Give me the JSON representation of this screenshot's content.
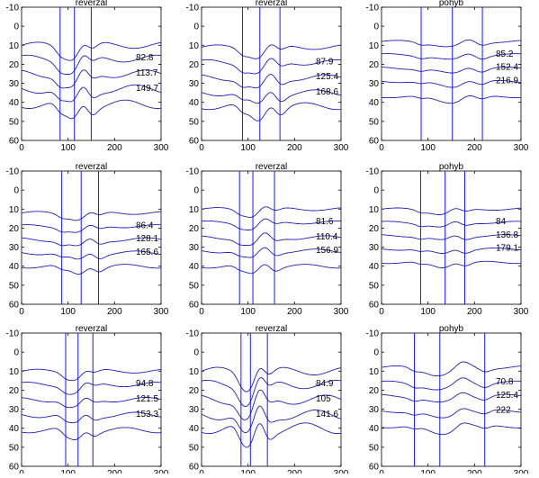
{
  "chart_data": [
    {
      "type": "line",
      "title": "reverzal",
      "xlim": [
        0,
        300
      ],
      "ylim": [
        60,
        -10
      ],
      "xticks": [
        "0",
        "100",
        "200",
        "300"
      ],
      "yticks": [
        "-10",
        "0",
        "10",
        "20",
        "30",
        "40",
        "50",
        "60"
      ],
      "markers": [
        82.8,
        113.7,
        149.7
      ],
      "labels": [
        "82.8",
        "113.7",
        "149.7"
      ],
      "series": [
        {
          "baseline": 10,
          "amp": 8
        },
        {
          "baseline": 17,
          "amp": 9
        },
        {
          "baseline": 25,
          "amp": 10
        },
        {
          "baseline": 33,
          "amp": 11
        },
        {
          "baseline": 41,
          "amp": 11
        }
      ]
    },
    {
      "type": "line",
      "title": "reverzal",
      "xlim": [
        0,
        300
      ],
      "ylim": [
        60,
        -10
      ],
      "xticks": [
        "0",
        "100",
        "200",
        "300"
      ],
      "yticks": [
        "-10",
        "0",
        "10",
        "20",
        "30",
        "40",
        "50",
        "60"
      ],
      "markers": [
        87.9,
        125.4,
        168.6
      ],
      "labels": [
        "87.9",
        "125.4",
        "168.6"
      ],
      "series": [
        {
          "baseline": 11,
          "amp": 6
        },
        {
          "baseline": 19,
          "amp": 7
        },
        {
          "baseline": 27,
          "amp": 8
        },
        {
          "baseline": 35,
          "amp": 8
        },
        {
          "baseline": 42,
          "amp": 9
        }
      ]
    },
    {
      "type": "line",
      "title": "pohyb",
      "xlim": [
        0,
        300
      ],
      "ylim": [
        60,
        -10
      ],
      "xticks": [
        "0",
        "100",
        "200",
        "300"
      ],
      "yticks": [
        "-10",
        "0",
        "10",
        "20",
        "30",
        "40",
        "50",
        "60"
      ],
      "markers": [
        85.2,
        152.4,
        216.9
      ],
      "labels": [
        "85.2",
        "152.4",
        "216.9"
      ],
      "series": [
        {
          "baseline": 8,
          "amp": 3
        },
        {
          "baseline": 15,
          "amp": 3
        },
        {
          "baseline": 22,
          "amp": 3
        },
        {
          "baseline": 29,
          "amp": 3
        },
        {
          "baseline": 37,
          "amp": 3
        }
      ]
    },
    {
      "type": "line",
      "title": "reverzal",
      "xlim": [
        0,
        300
      ],
      "ylim": [
        60,
        -10
      ],
      "xticks": [
        "0",
        "100",
        "200",
        "300"
      ],
      "yticks": [
        "-10",
        "0",
        "10",
        "20",
        "30",
        "40",
        "50",
        "60"
      ],
      "markers": [
        86.4,
        128.1,
        165.6
      ],
      "labels": [
        "86.4",
        "128.1",
        "165.6"
      ],
      "series": [
        {
          "baseline": 12,
          "amp": 4
        },
        {
          "baseline": 19,
          "amp": 4
        },
        {
          "baseline": 26,
          "amp": 5
        },
        {
          "baseline": 33,
          "amp": 5
        },
        {
          "baseline": 40,
          "amp": 5
        }
      ]
    },
    {
      "type": "line",
      "title": "reverzal",
      "xlim": [
        0,
        300
      ],
      "ylim": [
        60,
        -10
      ],
      "xticks": [
        "0",
        "100",
        "200",
        "300"
      ],
      "yticks": [
        "-10",
        "0",
        "10",
        "20",
        "30",
        "40",
        "50",
        "60"
      ],
      "markers": [
        81.6,
        110.4,
        156.9
      ],
      "labels": [
        "81.6",
        "110.4",
        "156.9"
      ],
      "series": [
        {
          "baseline": 10,
          "amp": 4
        },
        {
          "baseline": 17,
          "amp": 4
        },
        {
          "baseline": 25,
          "amp": 5
        },
        {
          "baseline": 32,
          "amp": 5
        },
        {
          "baseline": 40,
          "amp": 5
        }
      ]
    },
    {
      "type": "line",
      "title": "pohyb",
      "xlim": [
        0,
        300
      ],
      "ylim": [
        60,
        -10
      ],
      "xticks": [
        "0",
        "100",
        "200",
        "300"
      ],
      "yticks": [
        "-10",
        "0",
        "10",
        "20",
        "30",
        "40",
        "50",
        "60"
      ],
      "markers": [
        84,
        136.8,
        179.1
      ],
      "labels": [
        "84",
        "136.8",
        "179.1"
      ],
      "series": [
        {
          "baseline": 10,
          "amp": 3
        },
        {
          "baseline": 17,
          "amp": 3
        },
        {
          "baseline": 24,
          "amp": 3
        },
        {
          "baseline": 31,
          "amp": 3
        },
        {
          "baseline": 38,
          "amp": 3
        }
      ]
    },
    {
      "type": "line",
      "title": "reverzal",
      "xlim": [
        0,
        300
      ],
      "ylim": [
        60,
        -10
      ],
      "xticks": [
        "0",
        "100",
        "200",
        "300"
      ],
      "yticks": [
        "-10",
        "0",
        "10",
        "20",
        "30",
        "40",
        "50",
        "60"
      ],
      "markers": [
        94.8,
        121.5,
        153.3
      ],
      "labels": [
        "94.8",
        "121.5",
        "153.3"
      ],
      "series": [
        {
          "baseline": 10,
          "amp": 5
        },
        {
          "baseline": 17,
          "amp": 6
        },
        {
          "baseline": 25,
          "amp": 6
        },
        {
          "baseline": 33,
          "amp": 7
        },
        {
          "baseline": 41,
          "amp": 7
        }
      ]
    },
    {
      "type": "line",
      "title": "reverzal",
      "xlim": [
        0,
        300
      ],
      "ylim": [
        60,
        -10
      ],
      "xticks": [
        "0",
        "100",
        "200",
        "300"
      ],
      "yticks": [
        "-10",
        "0",
        "10",
        "20",
        "30",
        "40",
        "50",
        "60"
      ],
      "markers": [
        84.9,
        105,
        141.6
      ],
      "labels": [
        "84.9",
        "105",
        "141.6"
      ],
      "series": [
        {
          "baseline": 10,
          "amp": 10
        },
        {
          "baseline": 17,
          "amp": 11
        },
        {
          "baseline": 25,
          "amp": 12
        },
        {
          "baseline": 33,
          "amp": 13
        },
        {
          "baseline": 40,
          "amp": 14
        }
      ]
    },
    {
      "type": "line",
      "title": "pohyb",
      "xlim": [
        0,
        300
      ],
      "ylim": [
        60,
        -10
      ],
      "xticks": [
        "0",
        "100",
        "200",
        "300"
      ],
      "yticks": [
        "-10",
        "0",
        "10",
        "20",
        "30",
        "40",
        "50",
        "60"
      ],
      "markers": [
        70.8,
        125.4,
        222
      ],
      "labels": [
        "70.8",
        "125.4",
        "222"
      ],
      "series": [
        {
          "baseline": 8,
          "amp": 4
        },
        {
          "baseline": 16,
          "amp": 4
        },
        {
          "baseline": 23,
          "amp": 4
        },
        {
          "baseline": 31,
          "amp": 4
        },
        {
          "baseline": 39,
          "amp": 4
        }
      ]
    }
  ],
  "colors": {
    "trace": "#1f1fbf",
    "marker": "#0000ff",
    "axes": "#000000"
  }
}
